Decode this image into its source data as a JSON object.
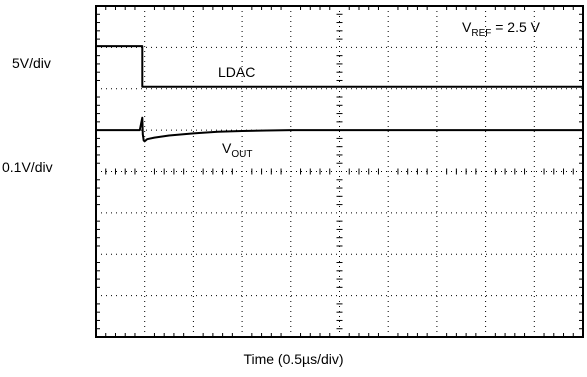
{
  "chart_data": {
    "type": "line",
    "title": "",
    "xlabel": "Time (0.5µs/div)",
    "ylabel": "",
    "x_divisions": 10,
    "y_divisions": 8,
    "grid": true,
    "grid_style": "dotted",
    "channel_scales": [
      "5V/div",
      "0.1V/div"
    ],
    "annotation": {
      "prefix": "V",
      "subscript": "REF",
      "suffix": " = 2.5 V",
      "placement": "top-right"
    },
    "series": [
      {
        "name": "LDAC",
        "color": "#000000",
        "x": [
          0,
          0.95,
          0.95,
          10
        ],
        "y": [
          7.03,
          7.03,
          6.05,
          6.05
        ]
      },
      {
        "name_prefix": "V",
        "name_subscript": "OUT",
        "color": "#000000",
        "x": [
          0,
          0.9,
          0.95,
          0.96,
          0.98,
          1.0,
          1.05,
          1.2,
          1.5,
          2.0,
          2.5,
          3.0,
          3.5,
          4.0,
          5.0,
          6.0,
          10
        ],
        "y": [
          5.0,
          5.0,
          5.3,
          4.9,
          4.75,
          4.73,
          4.78,
          4.82,
          4.87,
          4.92,
          4.96,
          4.98,
          4.99,
          5.0,
          5.0,
          5.0,
          5.0
        ]
      }
    ]
  }
}
